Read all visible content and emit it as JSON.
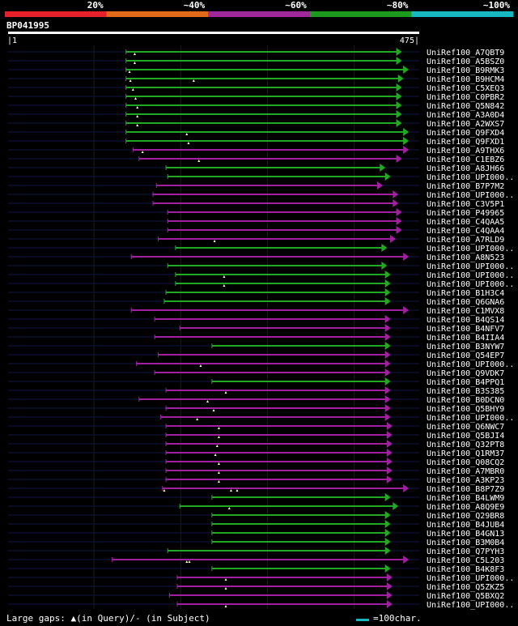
{
  "chart_data": {
    "type": "alignment-overview",
    "title": "BP041995",
    "query_length": 475,
    "axis_start_label": "|1",
    "axis_end_label": "475|",
    "identity_bands": [
      {
        "label": "20%",
        "color": "#e8202a"
      },
      {
        "label": "~40%",
        "color": "#e06a1a"
      },
      {
        "label": "~60%",
        "color": "#a0289a"
      },
      {
        "label": "~80%",
        "color": "#1d9a1d"
      },
      {
        "label": "~100%",
        "color": "#18b8c0"
      }
    ],
    "legend": "Large gaps: ▲(in Query)/- (in Subject)",
    "scale_label": "=100char.",
    "hits": [
      {
        "name": "UniRef100_A7QBT9",
        "start": 137,
        "end": 455,
        "color": "green",
        "marks": [
          147
        ]
      },
      {
        "name": "UniRef100_A5BSZ0",
        "start": 137,
        "end": 455,
        "color": "green",
        "marks": [
          147
        ]
      },
      {
        "name": "UniRef100_B9RMK3",
        "start": 137,
        "end": 463,
        "color": "green",
        "marks": [
          141
        ]
      },
      {
        "name": "UniRef100_B9HCM4",
        "start": 137,
        "end": 457,
        "color": "green",
        "marks": [
          142,
          215
        ]
      },
      {
        "name": "UniRef100_C5XEQ3",
        "start": 137,
        "end": 455,
        "color": "green",
        "marks": [
          145
        ]
      },
      {
        "name": "UniRef100_C0PBR2",
        "start": 137,
        "end": 455,
        "color": "green",
        "marks": [
          148
        ]
      },
      {
        "name": "UniRef100_Q5N842",
        "start": 137,
        "end": 455,
        "color": "green",
        "marks": [
          150
        ]
      },
      {
        "name": "UniRef100_A3A0D4",
        "start": 137,
        "end": 455,
        "color": "green",
        "marks": [
          150
        ]
      },
      {
        "name": "UniRef100_A2WXS7",
        "start": 137,
        "end": 455,
        "color": "green",
        "marks": [
          150
        ]
      },
      {
        "name": "UniRef100_Q9FXD4",
        "start": 137,
        "end": 463,
        "color": "green",
        "marks": [
          207
        ]
      },
      {
        "name": "UniRef100_Q9FXD1",
        "start": 137,
        "end": 463,
        "color": "green",
        "marks": [
          209
        ]
      },
      {
        "name": "UniRef100_A9THX6",
        "start": 145,
        "end": 463,
        "color": "magenta",
        "marks": [
          156
        ]
      },
      {
        "name": "UniRef100_C1EBZ6",
        "start": 152,
        "end": 455,
        "color": "magenta",
        "marks": [
          221
        ]
      },
      {
        "name": "UniRef100_A8JH66",
        "start": 183,
        "end": 436,
        "color": "green",
        "marks": []
      },
      {
        "name": "UniRef100_UPI000..",
        "start": 185,
        "end": 442,
        "color": "green",
        "marks": []
      },
      {
        "name": "UniRef100_B7P7M2",
        "start": 172,
        "end": 433,
        "color": "magenta",
        "marks": []
      },
      {
        "name": "UniRef100_UPI000..",
        "start": 168,
        "end": 451,
        "color": "magenta",
        "marks": []
      },
      {
        "name": "UniRef100_C3V5P1",
        "start": 168,
        "end": 451,
        "color": "magenta",
        "marks": []
      },
      {
        "name": "UniRef100_P49965",
        "start": 185,
        "end": 455,
        "color": "magenta",
        "marks": []
      },
      {
        "name": "UniRef100_C4QAA5",
        "start": 185,
        "end": 455,
        "color": "magenta",
        "marks": []
      },
      {
        "name": "UniRef100_C4QAA4",
        "start": 185,
        "end": 455,
        "color": "magenta",
        "marks": []
      },
      {
        "name": "UniRef100_A7RLD9",
        "start": 174,
        "end": 448,
        "color": "magenta",
        "marks": [
          239
        ]
      },
      {
        "name": "UniRef100_UPI000..",
        "start": 194,
        "end": 438,
        "color": "green",
        "marks": []
      },
      {
        "name": "UniRef100_A8N523",
        "start": 143,
        "end": 463,
        "color": "magenta",
        "marks": []
      },
      {
        "name": "UniRef100_UPI000..",
        "start": 185,
        "end": 438,
        "color": "green",
        "marks": []
      },
      {
        "name": "UniRef100_UPI000..",
        "start": 194,
        "end": 442,
        "color": "green",
        "marks": [
          250
        ]
      },
      {
        "name": "UniRef100_UPI000..",
        "start": 194,
        "end": 442,
        "color": "green",
        "marks": [
          250
        ]
      },
      {
        "name": "UniRef100_B1H3C4",
        "start": 183,
        "end": 442,
        "color": "green",
        "marks": []
      },
      {
        "name": "UniRef100_Q6GNA6",
        "start": 181,
        "end": 442,
        "color": "green",
        "marks": []
      },
      {
        "name": "UniRef100_C1MVX8",
        "start": 143,
        "end": 463,
        "color": "magenta",
        "marks": []
      },
      {
        "name": "UniRef100_B4QS14",
        "start": 170,
        "end": 442,
        "color": "magenta",
        "marks": []
      },
      {
        "name": "UniRef100_B4NFV7",
        "start": 199,
        "end": 442,
        "color": "magenta",
        "marks": []
      },
      {
        "name": "UniRef100_B4IIA4",
        "start": 170,
        "end": 442,
        "color": "magenta",
        "marks": []
      },
      {
        "name": "UniRef100_B3NYW7",
        "start": 236,
        "end": 442,
        "color": "green",
        "marks": []
      },
      {
        "name": "UniRef100_Q54EP7",
        "start": 174,
        "end": 442,
        "color": "magenta",
        "marks": []
      },
      {
        "name": "UniRef100_UPI000..",
        "start": 149,
        "end": 442,
        "color": "magenta",
        "marks": [
          223
        ]
      },
      {
        "name": "UniRef100_Q9VDK7",
        "start": 170,
        "end": 442,
        "color": "magenta",
        "marks": []
      },
      {
        "name": "UniRef100_B4PPQ1",
        "start": 236,
        "end": 442,
        "color": "green",
        "marks": []
      },
      {
        "name": "UniRef100_B3S385",
        "start": 183,
        "end": 442,
        "color": "magenta",
        "marks": [
          252
        ]
      },
      {
        "name": "UniRef100_B0DCN0",
        "start": 152,
        "end": 442,
        "color": "magenta",
        "marks": [
          231
        ]
      },
      {
        "name": "UniRef100_Q5BHY9",
        "start": 183,
        "end": 442,
        "color": "magenta",
        "marks": [
          238
        ]
      },
      {
        "name": "UniRef100_UPI000..",
        "start": 177,
        "end": 442,
        "color": "magenta",
        "marks": [
          219
        ]
      },
      {
        "name": "UniRef100_Q6NWC7",
        "start": 183,
        "end": 444,
        "color": "magenta",
        "marks": [
          244
        ]
      },
      {
        "name": "UniRef100_Q5BJI4",
        "start": 183,
        "end": 444,
        "color": "magenta",
        "marks": [
          244
        ]
      },
      {
        "name": "UniRef100_Q32PT8",
        "start": 183,
        "end": 444,
        "color": "magenta",
        "marks": [
          242
        ]
      },
      {
        "name": "UniRef100_Q1RM37",
        "start": 183,
        "end": 444,
        "color": "magenta",
        "marks": [
          240
        ]
      },
      {
        "name": "UniRef100_Q08CQ2",
        "start": 183,
        "end": 444,
        "color": "magenta",
        "marks": [
          244
        ]
      },
      {
        "name": "UniRef100_A7MBR0",
        "start": 183,
        "end": 444,
        "color": "magenta",
        "marks": [
          244
        ]
      },
      {
        "name": "UniRef100_A3KP23",
        "start": 183,
        "end": 444,
        "color": "magenta",
        "marks": [
          244
        ]
      },
      {
        "name": "UniRef100_B8P7Z9",
        "start": 179,
        "end": 463,
        "color": "magenta",
        "marks": [
          181,
          258,
          265
        ]
      },
      {
        "name": "UniRef100_B4LWM9",
        "start": 236,
        "end": 442,
        "color": "green",
        "marks": []
      },
      {
        "name": "UniRef100_A8Q9E9",
        "start": 199,
        "end": 451,
        "color": "green",
        "marks": [
          256
        ]
      },
      {
        "name": "UniRef100_Q29BR8",
        "start": 236,
        "end": 442,
        "color": "green",
        "marks": []
      },
      {
        "name": "UniRef100_B4JUB4",
        "start": 236,
        "end": 442,
        "color": "green",
        "marks": []
      },
      {
        "name": "UniRef100_B4GN13",
        "start": 236,
        "end": 442,
        "color": "green",
        "marks": []
      },
      {
        "name": "UniRef100_B3M0B4",
        "start": 236,
        "end": 442,
        "color": "green",
        "marks": []
      },
      {
        "name": "UniRef100_Q7PYH3",
        "start": 185,
        "end": 442,
        "color": "green",
        "marks": []
      },
      {
        "name": "UniRef100_C5L203",
        "start": 121,
        "end": 463,
        "color": "magenta",
        "marks": [
          207,
          210
        ]
      },
      {
        "name": "UniRef100_B4K8F3",
        "start": 236,
        "end": 442,
        "color": "green",
        "marks": []
      },
      {
        "name": "UniRef100_UPI000..",
        "start": 196,
        "end": 444,
        "color": "magenta",
        "marks": [
          252
        ]
      },
      {
        "name": "UniRef100_Q5ZKZ5",
        "start": 196,
        "end": 444,
        "color": "magenta",
        "marks": [
          252
        ]
      },
      {
        "name": "UniRef100_Q5BXQ2",
        "start": 187,
        "end": 444,
        "color": "magenta",
        "marks": []
      },
      {
        "name": "UniRef100_UPI000..",
        "start": 196,
        "end": 444,
        "color": "magenta",
        "marks": [
          252
        ]
      }
    ]
  }
}
